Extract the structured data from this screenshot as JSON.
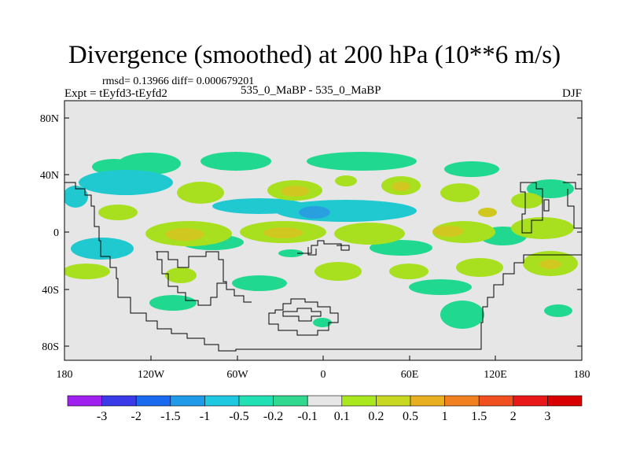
{
  "title": "Divergence (smoothed) at 200 hPa (10**6 m/s)",
  "stats_text": "rmsd= 0.13966 diff= 0.000679201",
  "expt_label": "Expt = tEyfd3-tEyfd2",
  "comparison_label": "535_0_MaBP - 535_0_MaBP",
  "season": "DJF",
  "y_axis_labels": [
    "80N",
    "40N",
    "0",
    "40S",
    "80S"
  ],
  "x_axis_labels": [
    "180",
    "120W",
    "60W",
    "0",
    "60E",
    "120E",
    "180"
  ],
  "colorbar": {
    "labels": [
      "-3",
      "-2",
      "-1.5",
      "-1",
      "-0.5",
      "-0.2",
      "-0.1",
      "0.1",
      "0.2",
      "0.5",
      "1",
      "1.5",
      "2",
      "3"
    ],
    "colors": [
      "#a020f0",
      "#3a3ae8",
      "#1a6af0",
      "#1e9ae8",
      "#1ec8e0",
      "#20e0b4",
      "#30d890",
      "#e6e6e6",
      "#a8e81c",
      "#c8d820",
      "#e8b020",
      "#f08020",
      "#f05020",
      "#e81818",
      "#d80000"
    ]
  },
  "field_colors": {
    "background": "#e6e6e6",
    "neg_light": "#20d890",
    "neg_mid": "#20c8d0",
    "neg_strong": "#28a0e0",
    "pos_light": "#a8e020",
    "pos_mid": "#d0c820",
    "pos_strong": "#e89028"
  }
}
